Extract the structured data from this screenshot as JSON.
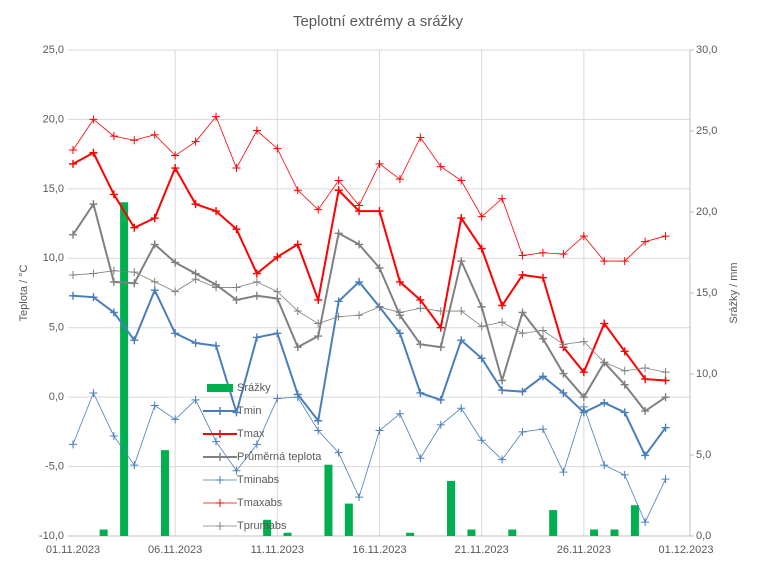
{
  "chart_data": {
    "type": "combo",
    "title": "Teplotní extrémy a srážky",
    "ylabel": "Teplota / °C",
    "y2label": "Srážky / mm",
    "categories": [
      "01.11.2023",
      null,
      null,
      null,
      null,
      "06.11.2023",
      null,
      null,
      null,
      null,
      "11.11.2023",
      null,
      null,
      null,
      null,
      "16.11.2023",
      null,
      null,
      null,
      null,
      "21.11.2023",
      null,
      null,
      null,
      null,
      "26.11.2023",
      null,
      null,
      null,
      null,
      "01.12.2023"
    ],
    "ylim": [
      -10,
      25
    ],
    "yticks": [
      {
        "value": -10,
        "label": "-10,0"
      },
      {
        "value": -5,
        "label": "-5,0"
      },
      {
        "value": 0,
        "label": "0,0"
      },
      {
        "value": 5,
        "label": "5,0"
      },
      {
        "value": 10,
        "label": "10,0"
      },
      {
        "value": 15,
        "label": "15,0"
      },
      {
        "value": 20,
        "label": "20,0"
      },
      {
        "value": 25,
        "label": "25,0"
      }
    ],
    "y2lim": [
      0,
      30
    ],
    "y2ticks": [
      {
        "value": 0,
        "label": "0,0"
      },
      {
        "value": 5,
        "label": "5,0"
      },
      {
        "value": 10,
        "label": "10,0"
      },
      {
        "value": 15,
        "label": "15,0"
      },
      {
        "value": 20,
        "label": "20,0"
      },
      {
        "value": 25,
        "label": "25,0"
      },
      {
        "value": 30,
        "label": "30,0"
      }
    ],
    "grid": true,
    "series": [
      {
        "name": "Srážky",
        "type": "bar",
        "axis": "y2",
        "color": "#00b050",
        "values": [
          0,
          0.4,
          20.6,
          0,
          5.3,
          0,
          0,
          0,
          0,
          1.0,
          0.2,
          0,
          4.4,
          2.0,
          0,
          0,
          0.2,
          0,
          3.4,
          0.4,
          0,
          0.4,
          0,
          1.6,
          0,
          0.4,
          0.4,
          1.9,
          0,
          0,
          null
        ]
      },
      {
        "name": "Tmin",
        "type": "line",
        "color": "#4a7ebb",
        "line_width": 2,
        "values": [
          7.3,
          7.2,
          6.1,
          4.1,
          7.7,
          4.6,
          3.9,
          3.7,
          -1.1,
          4.3,
          4.6,
          0.2,
          -1.7,
          6.9,
          8.3,
          6.5,
          4.6,
          0.3,
          -0.2,
          4.1,
          2.8,
          0.5,
          0.4,
          1.5,
          0.3,
          -1.1,
          -0.4,
          -1.1,
          -4.2,
          -2.2,
          null
        ]
      },
      {
        "name": "Tmax",
        "type": "line",
        "color": "#ff0000",
        "line_width": 2,
        "values": [
          16.8,
          17.6,
          14.6,
          12.2,
          12.9,
          16.5,
          13.9,
          13.4,
          12.1,
          8.9,
          10.1,
          11.0,
          7.0,
          14.9,
          13.4,
          13.4,
          8.3,
          7.0,
          5.0,
          12.9,
          10.7,
          6.6,
          8.8,
          8.6,
          3.6,
          1.8,
          5.3,
          3.3,
          1.3,
          1.2,
          null
        ]
      },
      {
        "name": "Průměrná teplota",
        "type": "line",
        "color": "#808080",
        "line_width": 2,
        "values": [
          11.7,
          13.9,
          8.3,
          8.2,
          11.0,
          9.7,
          8.9,
          8.1,
          7.0,
          7.3,
          7.1,
          3.6,
          4.4,
          11.8,
          11.0,
          9.3,
          5.9,
          3.8,
          3.6,
          9.8,
          6.5,
          1.2,
          6.1,
          4.2,
          1.7,
          0.0,
          2.5,
          0.9,
          -1.0,
          0.0,
          null
        ]
      },
      {
        "name": "Tminabs",
        "type": "line",
        "color": "#4a7ebb",
        "line_width": 0.8,
        "values": [
          -3.4,
          0.3,
          -2.8,
          -4.9,
          -0.6,
          -1.6,
          -0.2,
          -3.2,
          -5.3,
          -3.4,
          -0.1,
          0.0,
          -2.4,
          -4.0,
          -7.2,
          -2.4,
          -1.2,
          -4.4,
          -2.0,
          -0.8,
          -3.1,
          -4.5,
          -2.5,
          -2.3,
          -5.4,
          -0.7,
          -4.9,
          -5.6,
          -9.0,
          -5.9,
          null
        ]
      },
      {
        "name": "Tmaxabs",
        "type": "line",
        "color": "#ff0000",
        "line_width": 0.8,
        "values": [
          17.8,
          20.0,
          18.8,
          18.5,
          18.9,
          17.4,
          18.4,
          20.2,
          16.5,
          19.2,
          17.9,
          14.9,
          13.5,
          15.6,
          13.8,
          16.8,
          15.7,
          18.7,
          16.6,
          15.6,
          13.0,
          14.3,
          10.2,
          10.4,
          10.3,
          11.6,
          9.8,
          9.8,
          11.2,
          11.6,
          null
        ]
      },
      {
        "name": "Tprumabs",
        "type": "line",
        "color": "#808080",
        "line_width": 0.8,
        "values": [
          8.8,
          8.9,
          9.1,
          9.0,
          8.3,
          7.6,
          8.5,
          7.9,
          7.9,
          8.3,
          7.6,
          6.2,
          5.3,
          5.8,
          5.9,
          6.5,
          6.1,
          6.4,
          6.2,
          6.2,
          5.1,
          5.4,
          4.6,
          4.8,
          3.8,
          4.0,
          2.5,
          1.9,
          2.1,
          1.8,
          null
        ]
      }
    ]
  }
}
